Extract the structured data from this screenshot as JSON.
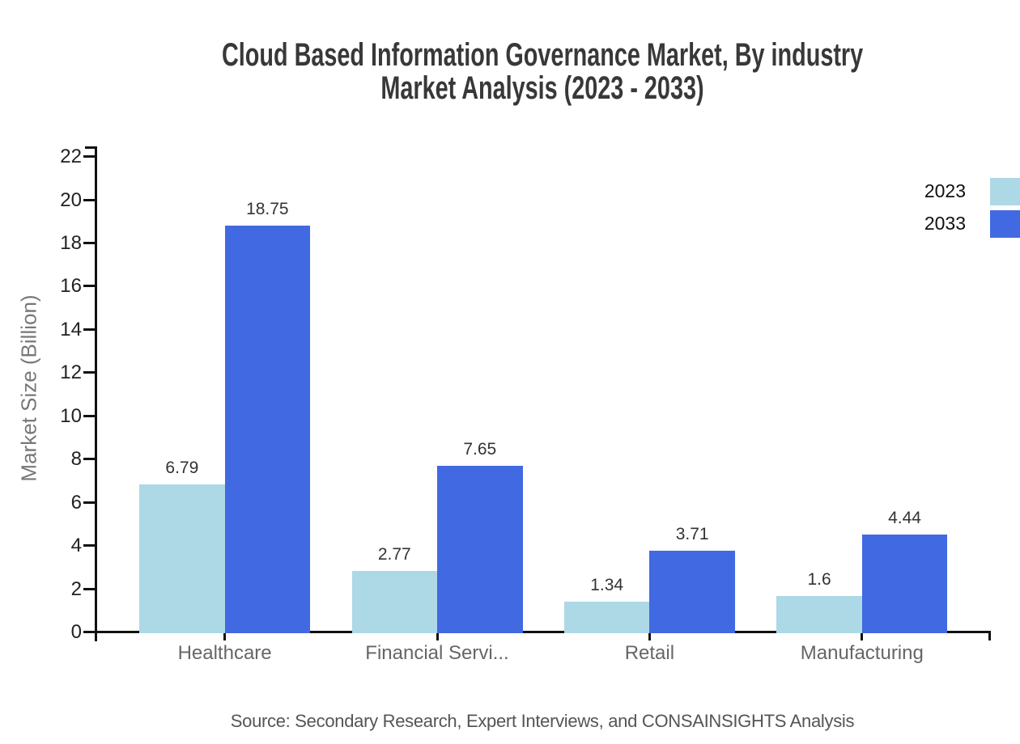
{
  "title": {
    "line1": "Cloud Based Information Governance Market, By industry",
    "line2": "Market Analysis (2023 - 2033)"
  },
  "source": "Source: Secondary Research, Expert Interviews, and CONSAINSIGHTS Analysis",
  "legend": {
    "items": [
      {
        "label": "2023",
        "color": "#ADD8E6"
      },
      {
        "label": "2033",
        "color": "#4169E1"
      }
    ]
  },
  "chart_data": {
    "type": "bar",
    "title": "Cloud Based Information Governance Market, By industry Market Analysis (2023 - 2033)",
    "categories": [
      "Healthcare",
      "Financial Servi...",
      "Retail",
      "Manufacturing"
    ],
    "series": [
      {
        "name": "2023",
        "color": "#ADD8E6",
        "values": [
          6.79,
          2.77,
          1.34,
          1.6
        ]
      },
      {
        "name": "2033",
        "color": "#4169E1",
        "values": [
          18.75,
          7.65,
          3.71,
          4.44
        ]
      }
    ],
    "value_labels": [
      "6.79",
      "18.75",
      "2.77",
      "7.65",
      "1.34",
      "3.71",
      "1.6",
      "4.44"
    ],
    "xlabel": "",
    "ylabel": "Market Size (Billion)",
    "ylim": [
      0,
      22
    ],
    "yticks": [
      0,
      2,
      4,
      6,
      8,
      10,
      12,
      14,
      16,
      18,
      20,
      22
    ],
    "grid": false,
    "legend_position": "top-right",
    "bar_value_labels_shown": true
  }
}
